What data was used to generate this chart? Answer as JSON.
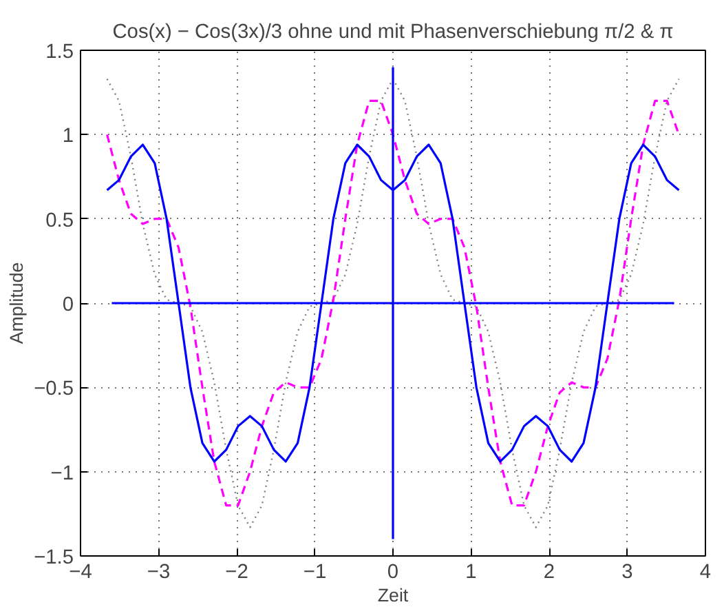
{
  "chart_data": {
    "type": "line",
    "title": "Cos(x) − Cos(3x)/3 ohne und mit Phasenverschiebung π/2 & π",
    "xlabel": "Zeit",
    "ylabel": "Amplitude",
    "x": [
      -3.66,
      -3.508,
      -3.355,
      -3.203,
      -3.05,
      -2.898,
      -2.745,
      -2.593,
      -2.44,
      -2.288,
      -2.135,
      -1.983,
      -1.83,
      -1.678,
      -1.525,
      -1.373,
      -1.22,
      -1.068,
      -0.915,
      -0.763,
      -0.61,
      -0.458,
      -0.305,
      -0.153,
      0,
      0.153,
      0.305,
      0.458,
      0.61,
      0.763,
      0.915,
      1.068,
      1.22,
      1.373,
      1.525,
      1.678,
      1.83,
      1.983,
      2.135,
      2.288,
      2.44,
      2.593,
      2.745,
      2.898,
      3.05,
      3.203,
      3.355,
      3.508,
      3.66
    ],
    "series": [
      {
        "color": "#7f7f7f",
        "line_style": "dotted",
        "values": [
          1.33,
          1.2,
          0.87,
          0.47,
          0.17,
          0.02,
          0,
          -0.02,
          -0.17,
          -0.47,
          -0.87,
          -1.2,
          -1.33,
          -1.2,
          -0.87,
          -0.47,
          -0.17,
          -0.02,
          0,
          0.02,
          0.17,
          0.47,
          0.87,
          1.2,
          1.33,
          1.2,
          0.87,
          0.47,
          0.17,
          0.02,
          0,
          -0.02,
          -0.17,
          -0.47,
          -0.87,
          -1.2,
          -1.33,
          -1.2,
          -0.87,
          -0.47,
          -0.17,
          -0.02,
          0,
          0.02,
          0.17,
          0.47,
          0.87,
          1.2,
          1.33
        ]
      },
      {
        "color": "#ff00ff",
        "line_style": "dashed",
        "values": [
          1,
          0.73,
          0.53,
          0.47,
          0.5,
          0.5,
          0.33,
          -0.02,
          -0.5,
          -0.94,
          -1.2,
          -1.2,
          -1,
          -0.73,
          -0.53,
          -0.47,
          -0.5,
          -0.5,
          -0.33,
          0.02,
          0.5,
          0.94,
          1.2,
          1.2,
          1,
          0.73,
          0.53,
          0.47,
          0.5,
          0.5,
          0.33,
          -0.02,
          -0.5,
          -0.94,
          -1.2,
          -1.2,
          -1,
          -0.73,
          -0.53,
          -0.47,
          -0.5,
          -0.5,
          -0.33,
          0.02,
          0.5,
          0.94,
          1.2,
          1.2,
          1
        ]
      },
      {
        "color": "#0000ff",
        "line_style": "solid",
        "values": [
          0.67,
          0.73,
          0.87,
          0.94,
          0.83,
          0.5,
          0,
          -0.5,
          -0.83,
          -0.94,
          -0.87,
          -0.73,
          -0.67,
          -0.73,
          -0.87,
          -0.94,
          -0.83,
          -0.5,
          0,
          0.5,
          0.83,
          0.94,
          0.87,
          0.73,
          0.67,
          0.73,
          0.87,
          0.94,
          0.83,
          0.5,
          0,
          -0.5,
          -0.83,
          -0.94,
          -0.87,
          -0.73,
          -0.67,
          -0.73,
          -0.87,
          -0.94,
          -0.83,
          -0.5,
          0,
          0.5,
          0.83,
          0.94,
          0.87,
          0.73,
          0.67
        ]
      },
      {
        "color": "#0000ff",
        "line_style": "solid",
        "x": [
          -3.6,
          3.6
        ],
        "values": [
          0,
          0
        ]
      },
      {
        "color": "#0000ff",
        "line_style": "solid",
        "x": [
          0,
          0
        ],
        "values": [
          -1.4,
          1.4
        ]
      }
    ],
    "xlim": [
      -4,
      4
    ],
    "xticks": [
      {
        "value": -4,
        "label": "−4"
      },
      {
        "value": -3,
        "label": "−3"
      },
      {
        "value": -2,
        "label": "−2"
      },
      {
        "value": -1,
        "label": "−1"
      },
      0,
      1,
      2,
      3,
      4
    ],
    "ylim": [
      -1.5,
      1.5
    ],
    "yticks": [
      {
        "value": -1.5,
        "label": "−1.5"
      },
      {
        "value": -1,
        "label": "−1"
      },
      {
        "value": -0.5,
        "label": "−0.5"
      },
      0,
      0.5,
      1,
      1.5
    ],
    "grid": true,
    "marker": "none"
  }
}
